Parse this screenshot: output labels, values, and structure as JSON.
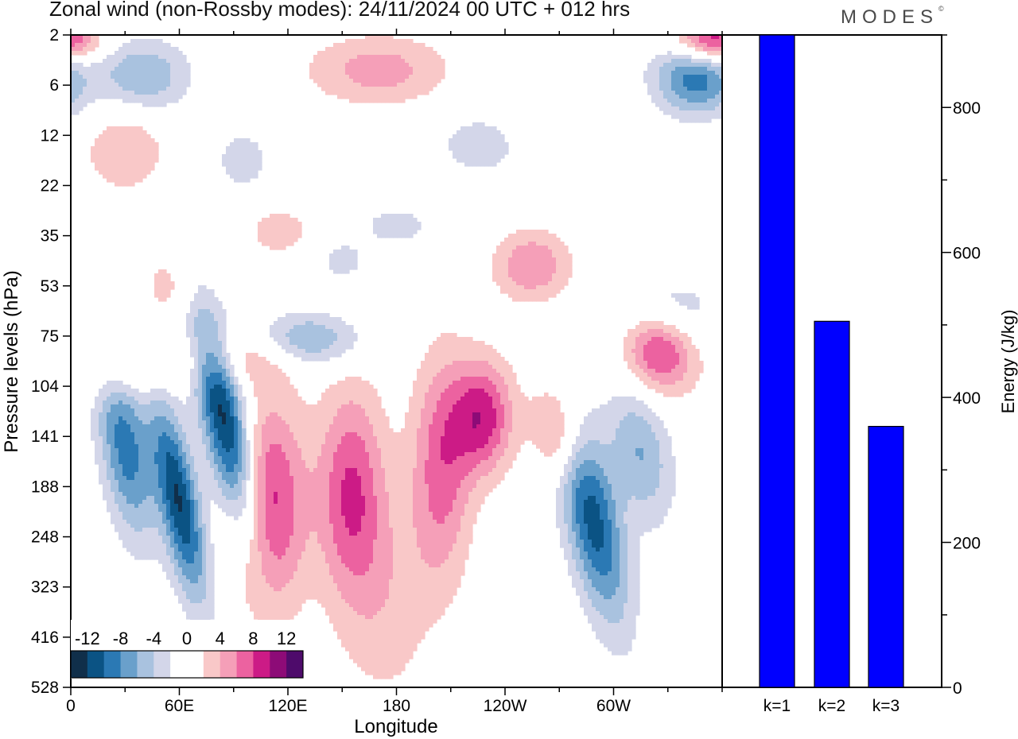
{
  "title": "Zonal wind (non-Rossby modes):  24/11/2024  00 UTC  + 012 hrs",
  "brand": "MODES",
  "brand_mark": "©",
  "colors": {
    "levels": [
      "#102f4a",
      "#0b5384",
      "#2b79b4",
      "#6aa0cb",
      "#a9c2df",
      "#d3d6e9",
      "#ffffff",
      "#ffffff",
      "#f9c8c8",
      "#f59fb8",
      "#ec62a0",
      "#cc1b86",
      "#8d0b77",
      "#4e0b6b"
    ],
    "bar": "#0000ff"
  },
  "chart_data": [
    {
      "type": "heatmap",
      "xlabel": "Longitude",
      "ylabel": "Pressure levels (hPa)",
      "x_ticks": [
        "0",
        "60E",
        "120E",
        "180",
        "120W",
        "60W"
      ],
      "x_tick_degrees": [
        0,
        60,
        120,
        180,
        240,
        300
      ],
      "xlim": [
        0,
        360
      ],
      "y_ticks": [
        "2",
        "6",
        "12",
        "22",
        "35",
        "53",
        "75",
        "104",
        "141",
        "188",
        "248",
        "323",
        "416",
        "528"
      ],
      "colorbar": {
        "tick_labels": [
          "-12",
          "-8",
          "-4",
          "0",
          "4",
          "8",
          "12"
        ],
        "levels": [
          -14,
          -12,
          -10,
          -8,
          -6,
          -4,
          -2,
          0,
          2,
          4,
          6,
          8,
          10,
          12,
          14
        ]
      },
      "features": [
        {
          "lon": 85,
          "level": 7.7,
          "value": -13,
          "slon": 9,
          "slev": 1.6,
          "tilt": -0.55
        },
        {
          "lon": 60,
          "level": 9.3,
          "value": -12,
          "slon": 8,
          "slev": 1.4,
          "tilt": -0.5
        },
        {
          "lon": 30,
          "level": 8.2,
          "value": -9,
          "slon": 10,
          "slev": 1.3,
          "tilt": -0.4
        },
        {
          "lon": 130,
          "level": 6.1,
          "value": -7,
          "slon": 22,
          "slev": 0.4,
          "tilt": -0.1
        },
        {
          "lon": 288,
          "level": 9.6,
          "value": -11,
          "slon": 11,
          "slev": 1.5,
          "tilt": -0.55
        },
        {
          "lon": 315,
          "level": 8.3,
          "value": -6,
          "slon": 12,
          "slev": 1.0,
          "tilt": -0.4
        },
        {
          "lon": 345,
          "level": 0.9,
          "value": -9,
          "slon": 16,
          "slev": 0.5,
          "tilt": -0.2
        },
        {
          "lon": 40,
          "level": 0.8,
          "value": -6,
          "slon": 18,
          "slev": 0.5,
          "tilt": -0.1
        },
        {
          "lon": 330,
          "level": 5.5,
          "value": -4,
          "slon": 20,
          "slev": 0.5,
          "tilt": -0.2
        },
        {
          "lon": 180,
          "level": 3.8,
          "value": -3,
          "slon": 15,
          "slev": 0.3,
          "tilt": 0
        },
        {
          "lon": 150,
          "level": 4.5,
          "value": -3,
          "slon": 10,
          "slev": 0.3,
          "tilt": 0
        },
        {
          "lon": 225,
          "level": 2.2,
          "value": -3,
          "slon": 18,
          "slev": 0.5,
          "tilt": -0.2
        },
        {
          "lon": 95,
          "level": 2.5,
          "value": -3,
          "slon": 12,
          "slev": 0.5,
          "tilt": 0
        },
        {
          "lon": 110,
          "level": 9.4,
          "value": 9,
          "slon": 14,
          "slev": 1.5,
          "tilt": 0
        },
        {
          "lon": 155,
          "level": 9.1,
          "value": 8,
          "slon": 13,
          "slev": 1.5,
          "tilt": 0
        },
        {
          "lon": 205,
          "level": 8.6,
          "value": 7,
          "slon": 12,
          "slev": 1.6,
          "tilt": 0
        },
        {
          "lon": 228,
          "level": 7.6,
          "value": 9,
          "slon": 12,
          "slev": 0.8,
          "tilt": 0
        },
        {
          "lon": 175,
          "level": 11.3,
          "value": 3,
          "slon": 18,
          "slev": 1.6,
          "tilt": 0
        },
        {
          "lon": 270,
          "level": 7.9,
          "value": 7,
          "slon": 10,
          "slev": 0.7,
          "tilt": -0.3
        },
        {
          "lon": 325,
          "level": 6.3,
          "value": 9,
          "slon": 14,
          "slev": 0.6,
          "tilt": -0.2
        },
        {
          "lon": 95,
          "level": 6.4,
          "value": 4,
          "slon": 26,
          "slev": 0.4,
          "tilt": -0.1
        },
        {
          "lon": 30,
          "level": 6.7,
          "value": 4,
          "slon": 18,
          "slev": 0.4,
          "tilt": 0
        },
        {
          "lon": 255,
          "level": 4.6,
          "value": 6,
          "slon": 15,
          "slev": 0.5,
          "tilt": 0
        },
        {
          "lon": 170,
          "level": 0.7,
          "value": 5,
          "slon": 28,
          "slev": 0.5,
          "tilt": 0
        },
        {
          "lon": 355,
          "level": 0.1,
          "value": 10,
          "slon": 14,
          "slev": 0.3,
          "tilt": 0
        },
        {
          "lon": 30,
          "level": 2.3,
          "value": 4,
          "slon": 16,
          "slev": 0.6,
          "tilt": 0
        },
        {
          "lon": 115,
          "level": 3.9,
          "value": 3,
          "slon": 14,
          "slev": 0.4,
          "tilt": 0
        },
        {
          "lon": 55,
          "level": 5.0,
          "value": 3,
          "slon": 12,
          "slev": 0.5,
          "tilt": 0
        }
      ]
    },
    {
      "type": "bar",
      "categories": [
        "k=1",
        "k=2",
        "k=3"
      ],
      "values": [
        900,
        505,
        360
      ],
      "ylabel": "Energy (J/kg)",
      "ylim": [
        0,
        900
      ],
      "y_ticks": [
        0,
        200,
        400,
        600,
        800
      ]
    }
  ]
}
